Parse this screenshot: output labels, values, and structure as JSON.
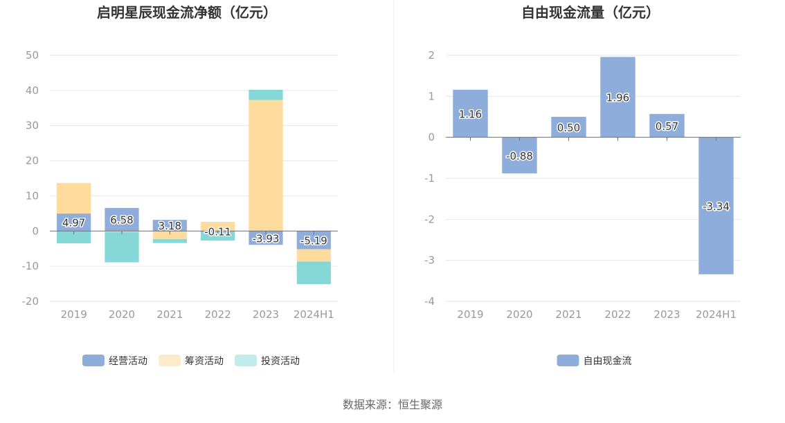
{
  "source_text": "数据来源：恒生聚源",
  "chart_data": [
    {
      "type": "bar",
      "stacked": true,
      "title": "启明星辰现金流净额（亿元）",
      "categories": [
        "2019",
        "2020",
        "2021",
        "2022",
        "2023",
        "2024H1"
      ],
      "y_ticks": [
        "50",
        "40",
        "30",
        "20",
        "10",
        "0",
        "-10",
        "-20"
      ],
      "ylim": [
        -20,
        50
      ],
      "grid": true,
      "legend_position": "bottom",
      "series": [
        {
          "name": "经营活动",
          "color": "#8fadda",
          "values": [
            4.97,
            6.58,
            3.18,
            -0.11,
            -3.93,
            -5.19
          ],
          "labels": [
            "4.97",
            "6.58",
            "3.18",
            "-0.11",
            "-3.93",
            "-5.19"
          ]
        },
        {
          "name": "筹资活动",
          "color": "#ffdb9e",
          "values": [
            8.7,
            -0.3,
            -2.3,
            2.6,
            37.3,
            -3.5
          ]
        },
        {
          "name": "投资活动",
          "color": "#85d7d8",
          "values": [
            -3.5,
            -8.6,
            -1.1,
            -2.6,
            2.9,
            -6.4
          ]
        }
      ]
    },
    {
      "type": "bar",
      "title": "自由现金流量（亿元）",
      "categories": [
        "2019",
        "2020",
        "2021",
        "2022",
        "2023",
        "2024H1"
      ],
      "y_ticks": [
        "2",
        "1",
        "0",
        "-1",
        "-2",
        "-3",
        "-4"
      ],
      "ylim": [
        -4,
        2
      ],
      "grid": true,
      "legend_position": "bottom",
      "series": [
        {
          "name": "自由现金流",
          "color": "#8fadda",
          "values": [
            1.16,
            -0.88,
            0.5,
            1.96,
            0.57,
            -3.34
          ],
          "labels": [
            "1.16",
            "-0.88",
            "0.50",
            "1.96",
            "0.57",
            "-3.34"
          ]
        }
      ]
    }
  ]
}
